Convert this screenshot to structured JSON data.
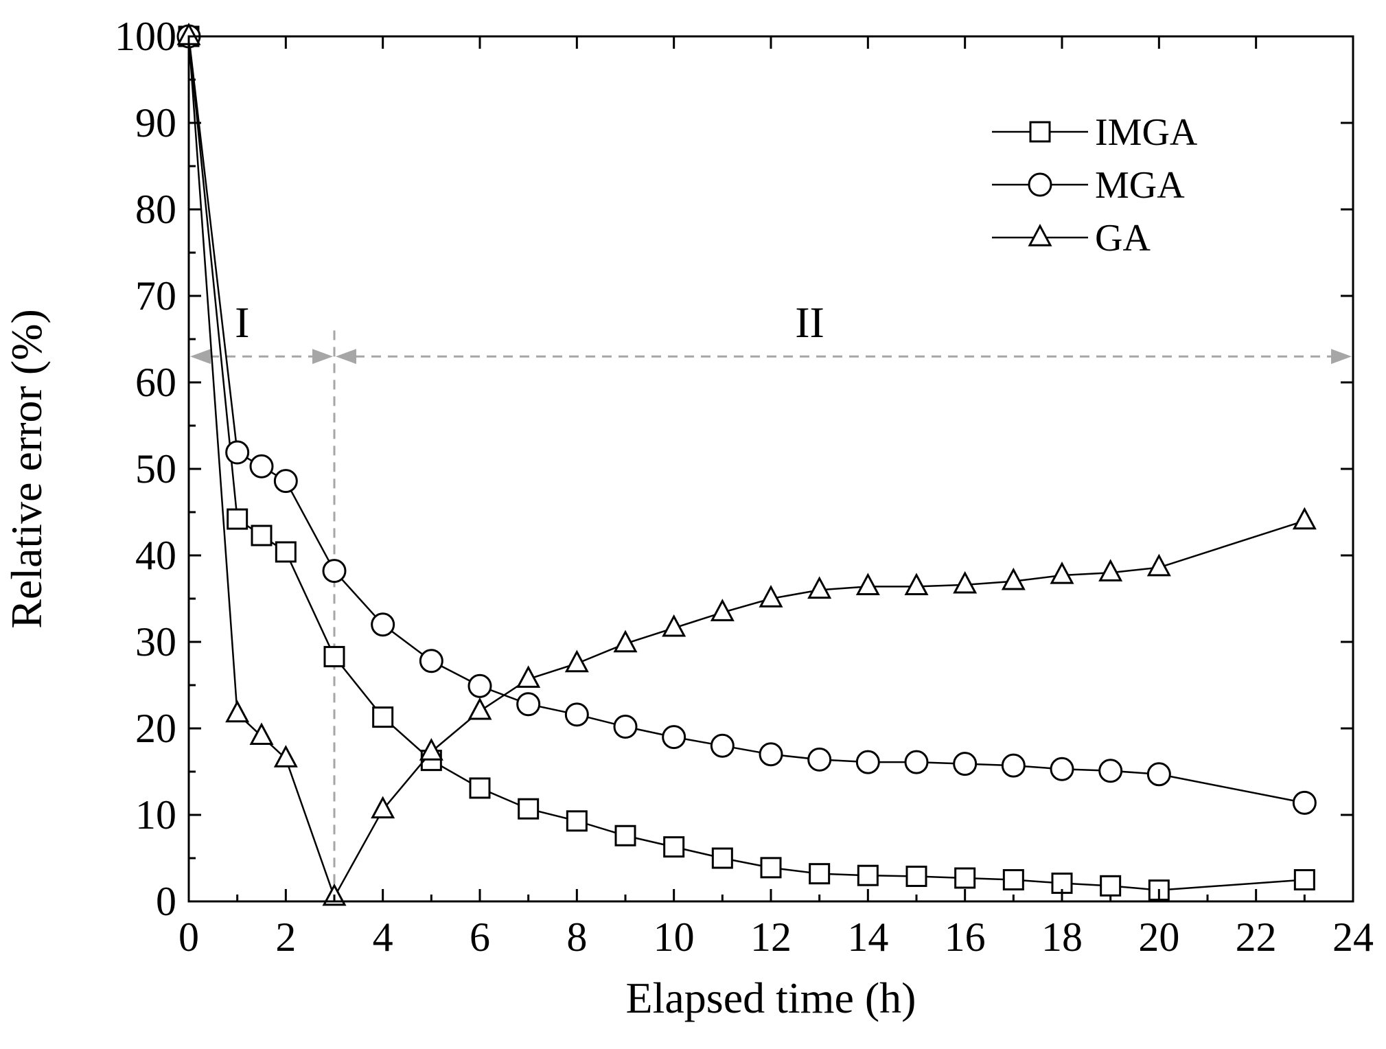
{
  "chart_data": {
    "type": "line",
    "title": "",
    "xlabel": "Elapsed time (h)",
    "ylabel": "Relative error (%)",
    "xlim": [
      0,
      24
    ],
    "ylim": [
      0,
      100
    ],
    "xticks": [
      0,
      2,
      4,
      6,
      8,
      10,
      12,
      14,
      16,
      18,
      20,
      22,
      24
    ],
    "yticks": [
      0,
      10,
      20,
      30,
      40,
      50,
      60,
      70,
      80,
      90,
      100
    ],
    "grid": false,
    "legend_position": "top-right",
    "series": [
      {
        "name": "IMGA",
        "marker": "square",
        "x": [
          0,
          1,
          1.5,
          2,
          3,
          4,
          5,
          6,
          7,
          8,
          9,
          10,
          11,
          12,
          13,
          14,
          15,
          16,
          17,
          18,
          19,
          20,
          23
        ],
        "y": [
          100,
          44.2,
          42.3,
          40.4,
          28.3,
          21.3,
          16.3,
          13.1,
          10.7,
          9.3,
          7.6,
          6.3,
          5.0,
          3.9,
          3.2,
          3.0,
          2.9,
          2.7,
          2.5,
          2.1,
          1.8,
          1.3,
          2.5
        ]
      },
      {
        "name": "MGA",
        "marker": "circle",
        "x": [
          0,
          1,
          1.5,
          2,
          3,
          4,
          5,
          6,
          7,
          8,
          9,
          10,
          11,
          12,
          13,
          14,
          15,
          16,
          17,
          18,
          19,
          20,
          23
        ],
        "y": [
          100,
          51.9,
          50.3,
          48.6,
          38.2,
          32.0,
          27.8,
          24.9,
          22.8,
          21.6,
          20.2,
          19.0,
          18.0,
          17.0,
          16.4,
          16.1,
          16.1,
          15.9,
          15.7,
          15.3,
          15.1,
          14.7,
          11.4
        ]
      },
      {
        "name": "GA",
        "marker": "triangle",
        "x": [
          0,
          1,
          1.5,
          2,
          3,
          4,
          5,
          6,
          7,
          8,
          9,
          10,
          11,
          12,
          13,
          14,
          15,
          16,
          17,
          18,
          19,
          20,
          23
        ],
        "y": [
          100,
          21.7,
          19.1,
          16.5,
          0.5,
          10.6,
          17.3,
          22.0,
          25.7,
          27.5,
          29.8,
          31.6,
          33.4,
          35.0,
          36.0,
          36.4,
          36.4,
          36.6,
          37.0,
          37.7,
          38.0,
          38.6,
          44.0
        ]
      }
    ],
    "annotations": {
      "divider_x": 3,
      "arrow_y": 63,
      "regions": [
        {
          "label": "I",
          "x_center": 1.1,
          "y": 67
        },
        {
          "label": "II",
          "x_center": 12.8,
          "y": 67
        }
      ]
    },
    "colors": {
      "axis": "#000000",
      "series_line": "#000000",
      "marker_fill": "#ffffff",
      "annotation": "#a6a6a6"
    }
  }
}
